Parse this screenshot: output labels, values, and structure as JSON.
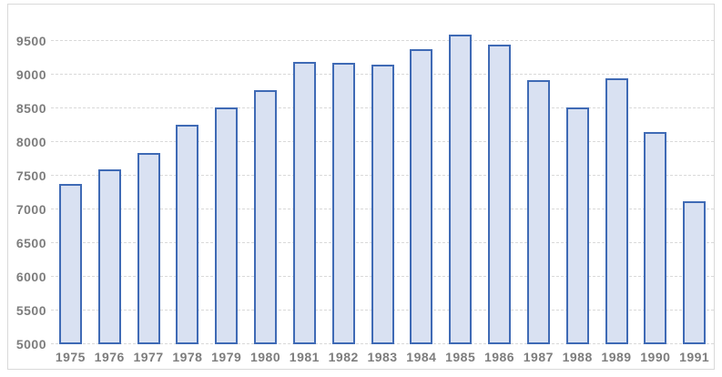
{
  "chart_data": {
    "type": "bar",
    "title": "",
    "xlabel": "",
    "ylabel": "",
    "categories": [
      "1975",
      "1976",
      "1977",
      "1978",
      "1979",
      "1980",
      "1981",
      "1982",
      "1983",
      "1984",
      "1985",
      "1986",
      "1987",
      "1988",
      "1989",
      "1990",
      "1991"
    ],
    "values": [
      7380,
      7600,
      7840,
      8260,
      8520,
      8780,
      9200,
      9180,
      9150,
      9390,
      9600,
      9450,
      8920,
      8520,
      8950,
      8150,
      7120
    ],
    "ylim": [
      5000,
      9750
    ],
    "yticks": [
      5000,
      5500,
      6000,
      6500,
      7000,
      7500,
      8000,
      8500,
      9000,
      9500
    ],
    "grid": true,
    "gridline_style": "dashed",
    "legend": false,
    "colors": {
      "bar_fill": "#d9e1f2",
      "bar_border": "#3f6ab5",
      "gridline": "#d9d9d9",
      "tick_label": "#7d7d7d",
      "frame_border": "#d9d9d9",
      "background": "#ffffff"
    }
  }
}
